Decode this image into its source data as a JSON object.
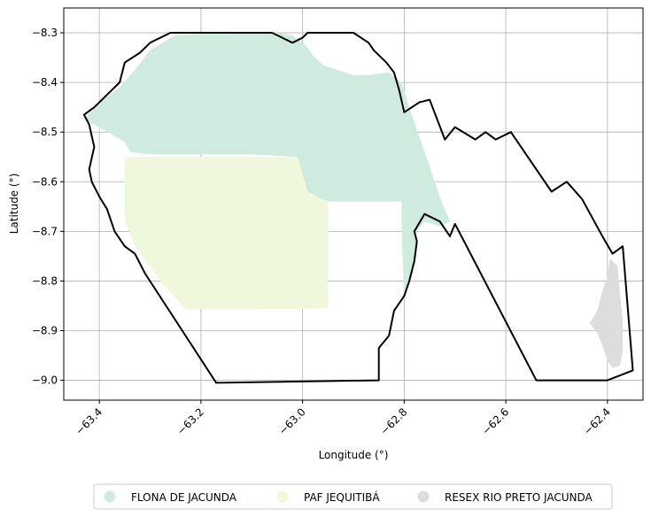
{
  "chart_data": {
    "type": "map",
    "xlabel": "Longitude (°)",
    "ylabel": "Latitude (°)",
    "xlim": [
      -63.47,
      -62.33
    ],
    "ylim": [
      -9.04,
      -8.25
    ],
    "grid": true,
    "x_ticks": [
      {
        "value": -63.4,
        "label": "−63.4"
      },
      {
        "value": -63.2,
        "label": "−63.2"
      },
      {
        "value": -63.0,
        "label": "−63.0"
      },
      {
        "value": -62.8,
        "label": "−62.8"
      },
      {
        "value": -62.6,
        "label": "−62.6"
      },
      {
        "value": -62.4,
        "label": "−62.4"
      }
    ],
    "y_ticks": [
      {
        "value": -8.3,
        "label": "−8.3"
      },
      {
        "value": -8.4,
        "label": "−8.4"
      },
      {
        "value": -8.5,
        "label": "−8.5"
      },
      {
        "value": -8.6,
        "label": "−8.6"
      },
      {
        "value": -8.7,
        "label": "−8.7"
      },
      {
        "value": -8.8,
        "label": "−8.8"
      },
      {
        "value": -8.9,
        "label": "−8.9"
      },
      {
        "value": -9.0,
        "label": "−9.0"
      }
    ],
    "legend_position": "bottom-center",
    "series": [
      {
        "name": "FLONA DE JACUNDA",
        "color": "#cfebdf",
        "polygon": [
          [
            -63.43,
            -8.475
          ],
          [
            -63.4,
            -8.44
          ],
          [
            -63.36,
            -8.41
          ],
          [
            -63.33,
            -8.375
          ],
          [
            -63.3,
            -8.335
          ],
          [
            -63.25,
            -8.305
          ],
          [
            -63.2,
            -8.302
          ],
          [
            -63.15,
            -8.302
          ],
          [
            -63.1,
            -8.3
          ],
          [
            -63.05,
            -8.3
          ],
          [
            -63.02,
            -8.305
          ],
          [
            -63.0,
            -8.32
          ],
          [
            -62.99,
            -8.33
          ],
          [
            -62.98,
            -8.345
          ],
          [
            -62.96,
            -8.365
          ],
          [
            -62.93,
            -8.375
          ],
          [
            -62.9,
            -8.385
          ],
          [
            -62.87,
            -8.385
          ],
          [
            -62.83,
            -8.38
          ],
          [
            -62.805,
            -8.4
          ],
          [
            -62.79,
            -8.45
          ],
          [
            -62.77,
            -8.51
          ],
          [
            -62.75,
            -8.57
          ],
          [
            -62.73,
            -8.63
          ],
          [
            -62.71,
            -8.68
          ],
          [
            -62.73,
            -8.69
          ],
          [
            -62.76,
            -8.68
          ],
          [
            -62.775,
            -8.7
          ],
          [
            -62.78,
            -8.76
          ],
          [
            -62.79,
            -8.8
          ],
          [
            -62.8,
            -8.84
          ],
          [
            -62.805,
            -8.7
          ],
          [
            -62.805,
            -8.64
          ],
          [
            -62.85,
            -8.64
          ],
          [
            -62.9,
            -8.64
          ],
          [
            -62.95,
            -8.64
          ],
          [
            -63.0,
            -8.64
          ],
          [
            -63.005,
            -8.61
          ],
          [
            -63.01,
            -8.55
          ],
          [
            -63.1,
            -8.545
          ],
          [
            -63.2,
            -8.545
          ],
          [
            -63.3,
            -8.545
          ],
          [
            -63.34,
            -8.54
          ],
          [
            -63.35,
            -8.52
          ],
          [
            -63.4,
            -8.49
          ],
          [
            -63.43,
            -8.475
          ]
        ]
      },
      {
        "name": "PAF JEQUITIBÁ",
        "color": "#eff8da",
        "polygon": [
          [
            -63.35,
            -8.55
          ],
          [
            -63.01,
            -8.55
          ],
          [
            -62.99,
            -8.62
          ],
          [
            -62.95,
            -8.64
          ],
          [
            -62.95,
            -8.855
          ],
          [
            -63.1,
            -8.857
          ],
          [
            -63.23,
            -8.857
          ],
          [
            -63.28,
            -8.8
          ],
          [
            -63.33,
            -8.73
          ],
          [
            -63.35,
            -8.68
          ],
          [
            -63.35,
            -8.55
          ]
        ]
      },
      {
        "name": "RESEX RIO PRETO JACUNDA",
        "color": "#dddddd",
        "polygon": [
          [
            -62.395,
            -8.755
          ],
          [
            -62.38,
            -8.77
          ],
          [
            -62.375,
            -8.83
          ],
          [
            -62.37,
            -8.88
          ],
          [
            -62.37,
            -8.94
          ],
          [
            -62.375,
            -8.97
          ],
          [
            -62.39,
            -8.975
          ],
          [
            -62.4,
            -8.96
          ],
          [
            -62.41,
            -8.93
          ],
          [
            -62.42,
            -8.905
          ],
          [
            -62.435,
            -8.885
          ],
          [
            -62.42,
            -8.86
          ],
          [
            -62.41,
            -8.82
          ],
          [
            -62.4,
            -8.79
          ],
          [
            -62.395,
            -8.755
          ]
        ]
      }
    ],
    "boundary": [
      [
        -63.43,
        -8.465
      ],
      [
        -63.42,
        -8.485
      ],
      [
        -63.41,
        -8.53
      ],
      [
        -63.42,
        -8.575
      ],
      [
        -63.415,
        -8.6
      ],
      [
        -63.4,
        -8.63
      ],
      [
        -63.385,
        -8.655
      ],
      [
        -63.37,
        -8.7
      ],
      [
        -63.35,
        -8.73
      ],
      [
        -63.33,
        -8.745
      ],
      [
        -63.31,
        -8.785
      ],
      [
        -63.17,
        -9.005
      ],
      [
        -62.85,
        -9.0
      ],
      [
        -62.85,
        -8.935
      ],
      [
        -62.83,
        -8.91
      ],
      [
        -62.82,
        -8.86
      ],
      [
        -62.8,
        -8.83
      ],
      [
        -62.79,
        -8.8
      ],
      [
        -62.78,
        -8.76
      ],
      [
        -62.775,
        -8.72
      ],
      [
        -62.78,
        -8.7
      ],
      [
        -62.76,
        -8.665
      ],
      [
        -62.73,
        -8.68
      ],
      [
        -62.71,
        -8.71
      ],
      [
        -62.7,
        -8.685
      ],
      [
        -62.54,
        -9.0
      ],
      [
        -62.4,
        -9.0
      ],
      [
        -62.35,
        -8.98
      ],
      [
        -62.37,
        -8.73
      ],
      [
        -62.39,
        -8.745
      ],
      [
        -62.41,
        -8.71
      ],
      [
        -62.45,
        -8.635
      ],
      [
        -62.48,
        -8.6
      ],
      [
        -62.51,
        -8.62
      ],
      [
        -62.59,
        -8.5
      ],
      [
        -62.62,
        -8.515
      ],
      [
        -62.64,
        -8.5
      ],
      [
        -62.66,
        -8.515
      ],
      [
        -62.7,
        -8.49
      ],
      [
        -62.72,
        -8.515
      ],
      [
        -62.75,
        -8.435
      ],
      [
        -62.77,
        -8.44
      ],
      [
        -62.8,
        -8.46
      ],
      [
        -62.81,
        -8.415
      ],
      [
        -62.82,
        -8.38
      ],
      [
        -62.835,
        -8.36
      ],
      [
        -62.86,
        -8.335
      ],
      [
        -62.87,
        -8.32
      ],
      [
        -62.9,
        -8.3
      ],
      [
        -62.99,
        -8.3
      ],
      [
        -63.0,
        -8.31
      ],
      [
        -63.02,
        -8.32
      ],
      [
        -63.04,
        -8.31
      ],
      [
        -63.06,
        -8.3
      ],
      [
        -63.26,
        -8.3
      ],
      [
        -63.29,
        -8.315
      ],
      [
        -63.3,
        -8.32
      ],
      [
        -63.32,
        -8.34
      ],
      [
        -63.35,
        -8.36
      ],
      [
        -63.36,
        -8.4
      ],
      [
        -63.38,
        -8.42
      ],
      [
        -63.41,
        -8.45
      ],
      [
        -63.43,
        -8.465
      ]
    ]
  }
}
